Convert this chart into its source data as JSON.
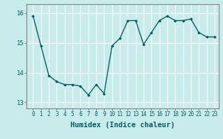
{
  "xlabel": "Humidex (Indice chaleur)",
  "ylabel": "",
  "x": [
    0,
    1,
    2,
    3,
    4,
    5,
    6,
    7,
    8,
    9,
    10,
    11,
    12,
    13,
    14,
    15,
    16,
    17,
    18,
    19,
    20,
    21,
    22,
    23
  ],
  "y": [
    15.9,
    14.9,
    13.9,
    13.7,
    13.6,
    13.6,
    13.55,
    13.25,
    13.6,
    13.3,
    14.9,
    15.15,
    15.75,
    15.75,
    14.95,
    15.35,
    15.75,
    15.9,
    15.75,
    15.75,
    15.8,
    15.35,
    15.2,
    15.2
  ],
  "line_color": "#006060",
  "marker": "D",
  "marker_size": 1.8,
  "bg_color": "#c8ecec",
  "grid_color": "#ffffff",
  "ylim": [
    12.8,
    16.3
  ],
  "yticks": [
    13,
    14,
    15,
    16
  ],
  "xticks": [
    0,
    1,
    2,
    3,
    4,
    5,
    6,
    7,
    8,
    9,
    10,
    11,
    12,
    13,
    14,
    15,
    16,
    17,
    18,
    19,
    20,
    21,
    22,
    23
  ],
  "tick_fontsize": 5.5,
  "xlabel_fontsize": 7.5,
  "ytick_fontsize": 6.5,
  "tick_color": "#006060",
  "label_color": "#006060",
  "spine_color": "#808080",
  "linewidth": 1.0
}
